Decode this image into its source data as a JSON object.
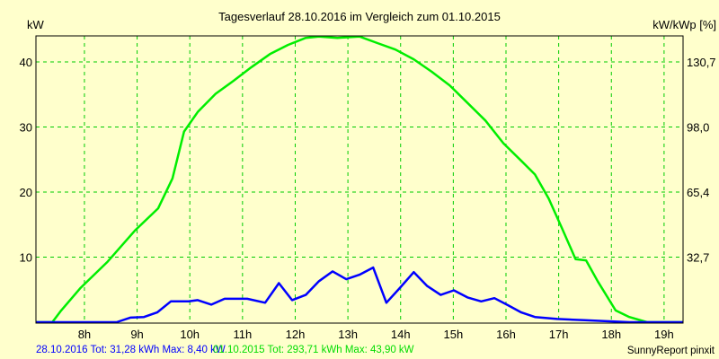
{
  "chart_data": {
    "type": "line",
    "title": "Tagesverlauf 28.10.2016 im Vergleich zum 01.10.2015",
    "ylabel": "kW",
    "ylabel_right": "kW/kWp [%]",
    "xlim": [
      7.08,
      19.36
    ],
    "ylim": [
      0,
      44
    ],
    "x_ticks": [
      8,
      9,
      10,
      11,
      12,
      13,
      14,
      15,
      16,
      17,
      18,
      19
    ],
    "x_tick_labels": [
      "8h",
      "9h",
      "10h",
      "11h",
      "12h",
      "13h",
      "14h",
      "15h",
      "16h",
      "17h",
      "18h",
      "19h"
    ],
    "y_ticks": [
      10,
      20,
      30,
      40
    ],
    "y_tick_labels": [
      "10",
      "20",
      "30",
      "40"
    ],
    "y_right_tick_labels": [
      "32,7",
      "65,4",
      "98,0",
      "130,7"
    ],
    "grid": true,
    "series": [
      {
        "name": "01.10.2015",
        "color": "#00ee00",
        "x": [
          7.08,
          7.39,
          7.56,
          7.93,
          8.44,
          8.96,
          9.4,
          9.67,
          9.89,
          10.15,
          10.49,
          10.83,
          11.17,
          11.52,
          11.86,
          12.2,
          12.45,
          12.8,
          13.22,
          13.56,
          13.9,
          14.25,
          14.59,
          14.93,
          15.27,
          15.61,
          15.95,
          16.29,
          16.55,
          16.81,
          17.06,
          17.32,
          17.52,
          17.74,
          18.08,
          18.34,
          18.68,
          19.36
        ],
        "y": [
          0,
          0,
          1.8,
          5.3,
          9.3,
          14.1,
          17.5,
          22.1,
          29.3,
          32.3,
          35.1,
          37.1,
          39.2,
          41.2,
          42.6,
          43.7,
          43.9,
          43.7,
          43.9,
          42.9,
          41.9,
          40.4,
          38.5,
          36.4,
          33.7,
          31.0,
          27.5,
          24.8,
          22.7,
          19.0,
          14.5,
          9.7,
          9.5,
          6.3,
          1.8,
          0.8,
          0,
          0
        ]
      },
      {
        "name": "28.10.2016",
        "color": "#0000ff",
        "x": [
          7.08,
          8.61,
          8.87,
          9.13,
          9.38,
          9.64,
          9.98,
          10.15,
          10.41,
          10.66,
          11.09,
          11.43,
          11.69,
          11.94,
          12.2,
          12.45,
          12.71,
          12.97,
          13.22,
          13.48,
          13.73,
          13.99,
          14.25,
          14.5,
          14.76,
          15.01,
          15.27,
          15.53,
          15.78,
          16.04,
          16.29,
          16.55,
          16.97,
          17.49,
          18.34,
          19.36
        ],
        "y": [
          0,
          0,
          0.7,
          0.8,
          1.5,
          3.2,
          3.2,
          3.4,
          2.7,
          3.6,
          3.6,
          3.0,
          6.0,
          3.4,
          4.2,
          6.3,
          7.8,
          6.6,
          7.3,
          8.4,
          3.0,
          5.3,
          7.7,
          5.6,
          4.2,
          4.9,
          3.8,
          3.2,
          3.7,
          2.6,
          1.5,
          0.8,
          0.5,
          0.3,
          0,
          0
        ]
      }
    ]
  },
  "legend": {
    "blue": "28.10.2016 Tot: 31,28 kWh Max: 8,40 kW",
    "green": "01.10.2015 Tot: 293,71 kWh Max: 43,90 kW"
  },
  "footer": "SunnyReport pinxit"
}
